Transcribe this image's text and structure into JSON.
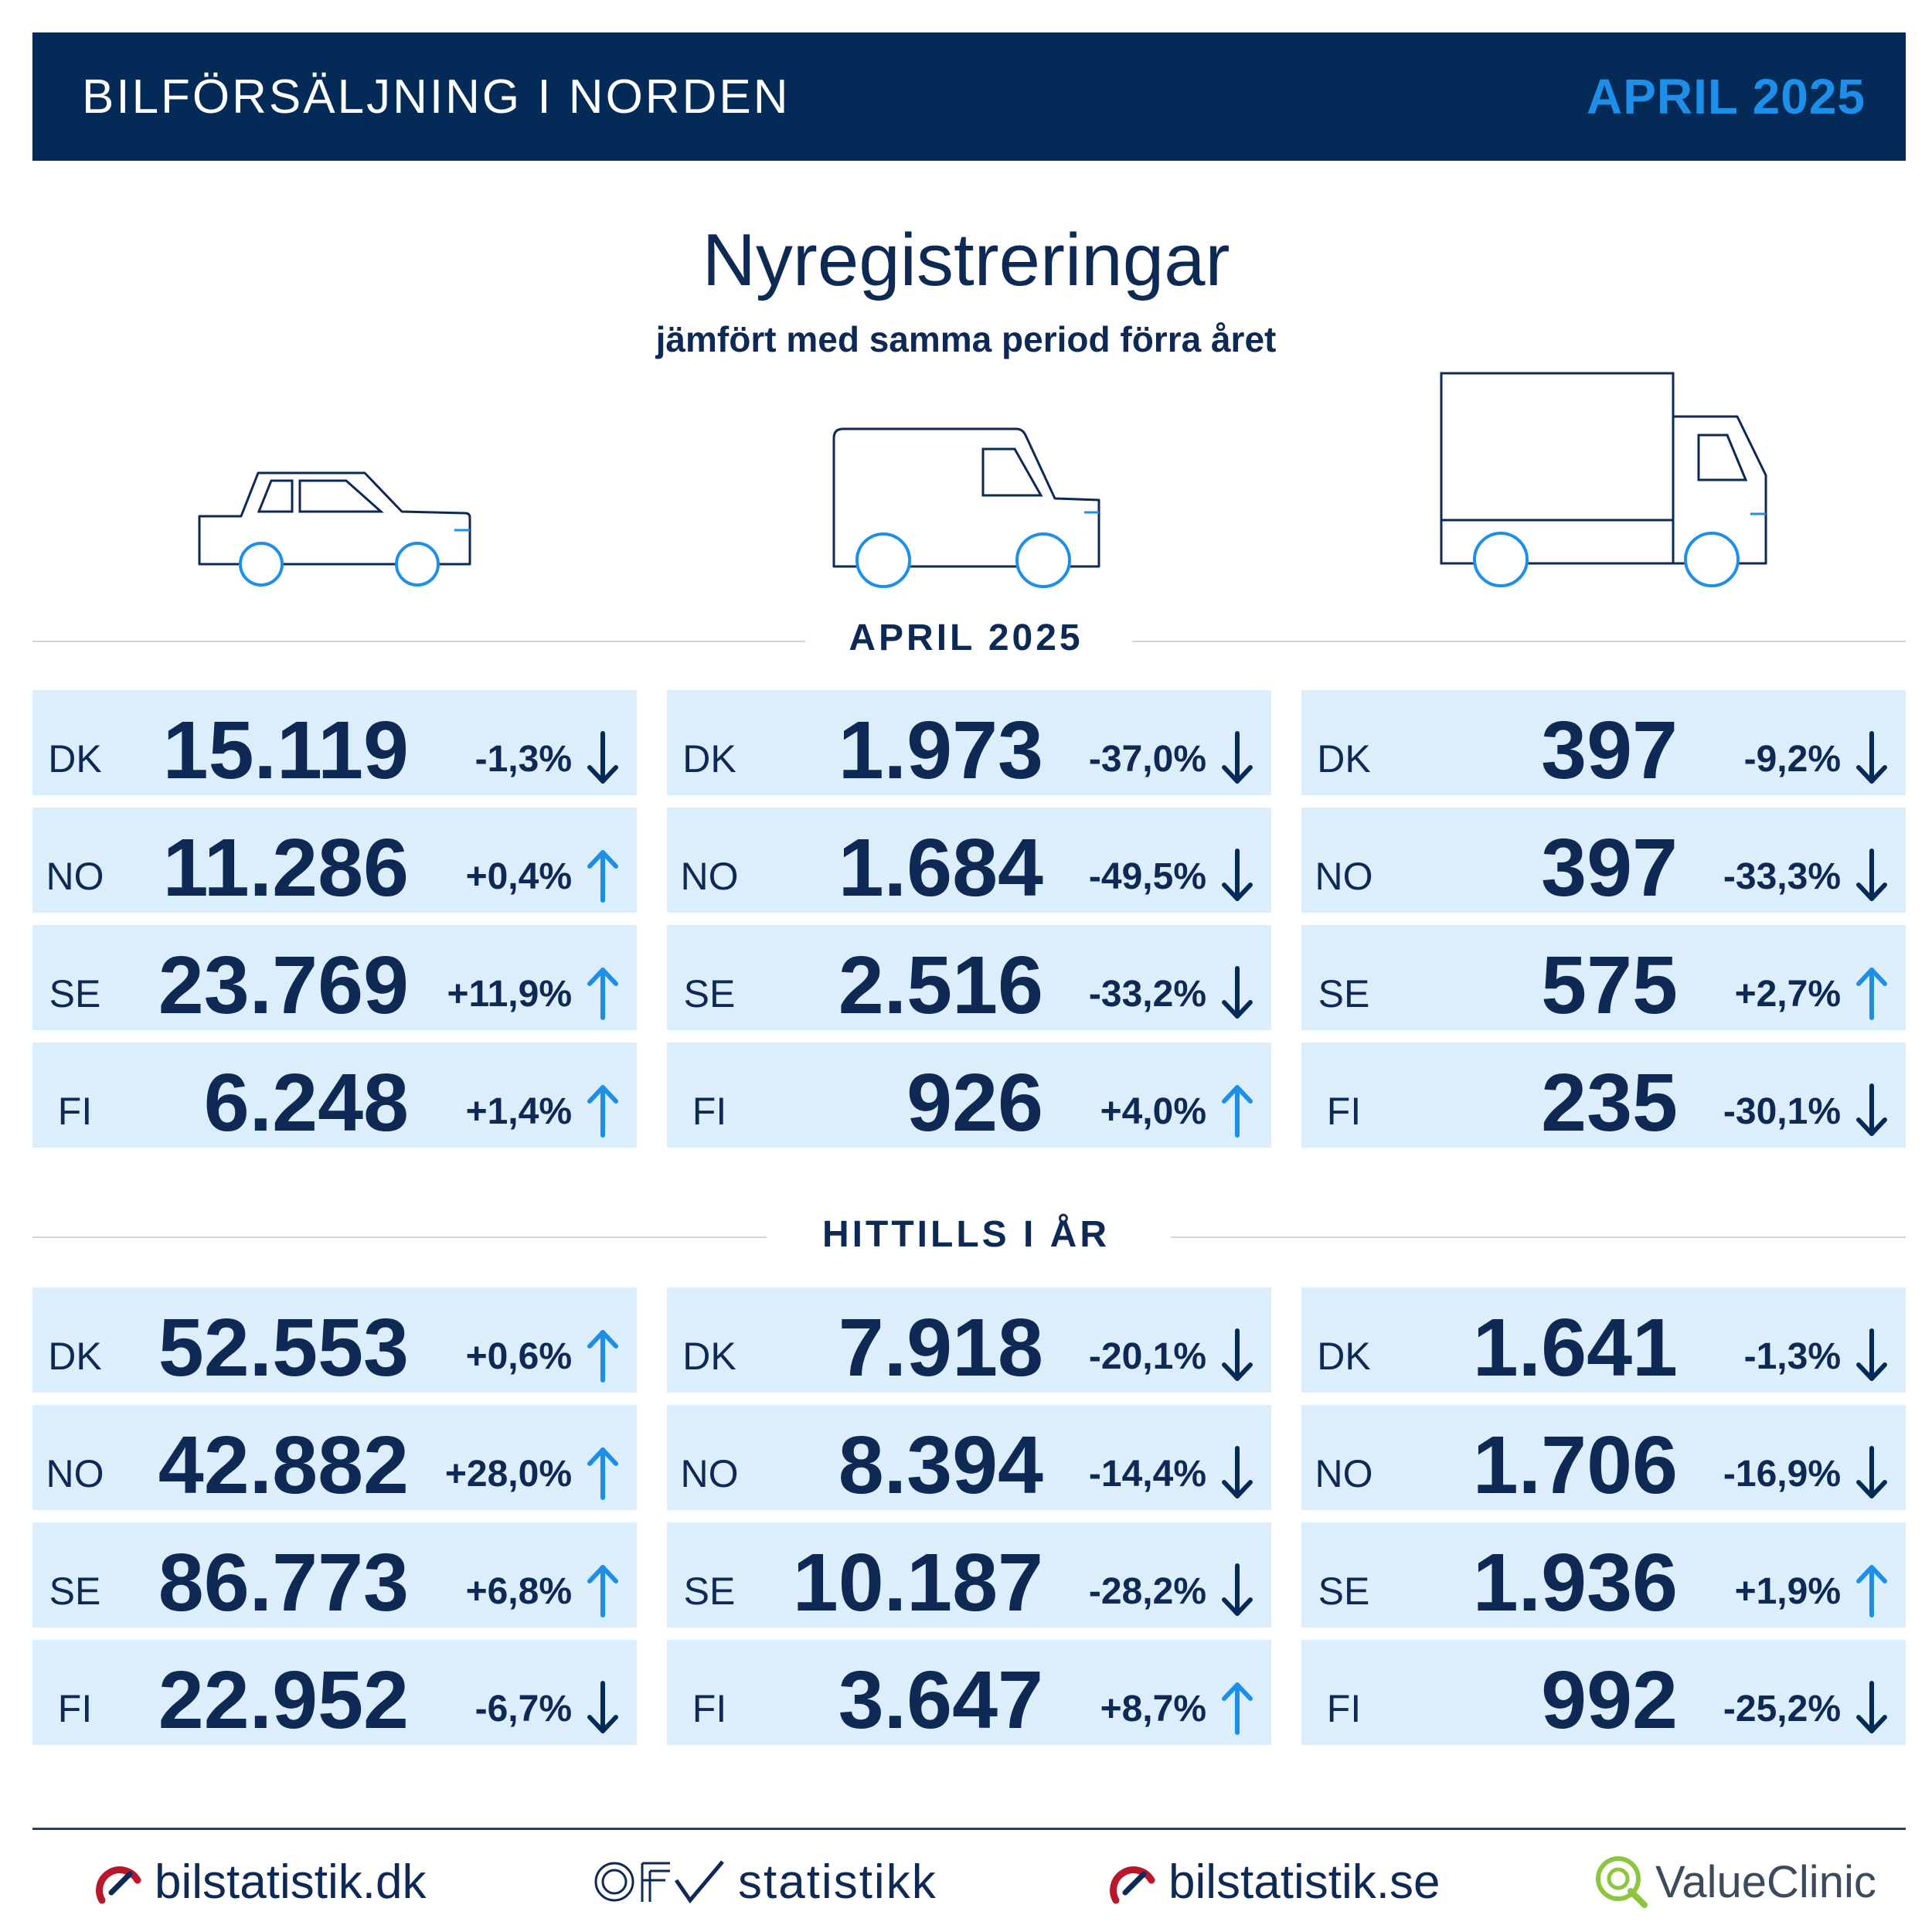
{
  "header": {
    "title": "BILFÖRSÄLJNING I NORDEN",
    "date": "APRIL 2025"
  },
  "title": "Nyregistreringar",
  "subtitle": "jämfört med samma period förra året",
  "colors": {
    "navy": "#042b58",
    "accent": "#1e8fe8",
    "card": "#dcedfb",
    "text": "#0e2a54"
  },
  "vehicles": [
    "car-icon",
    "van-icon",
    "truck-icon"
  ],
  "sections": [
    {
      "label": "APRIL 2025",
      "columns": [
        {
          "rows": [
            {
              "cc": "DK",
              "value": "15.119",
              "change": "-1,3%",
              "trend": "down"
            },
            {
              "cc": "NO",
              "value": "11.286",
              "change": "+0,4%",
              "trend": "up"
            },
            {
              "cc": "SE",
              "value": "23.769",
              "change": "+11,9%",
              "trend": "up"
            },
            {
              "cc": "FI",
              "value": "6.248",
              "change": "+1,4%",
              "trend": "up"
            }
          ]
        },
        {
          "rows": [
            {
              "cc": "DK",
              "value": "1.973",
              "change": "-37,0%",
              "trend": "down"
            },
            {
              "cc": "NO",
              "value": "1.684",
              "change": "-49,5%",
              "trend": "down"
            },
            {
              "cc": "SE",
              "value": "2.516",
              "change": "-33,2%",
              "trend": "down"
            },
            {
              "cc": "FI",
              "value": "926",
              "change": "+4,0%",
              "trend": "up"
            }
          ]
        },
        {
          "rows": [
            {
              "cc": "DK",
              "value": "397",
              "change": "-9,2%",
              "trend": "down"
            },
            {
              "cc": "NO",
              "value": "397",
              "change": "-33,3%",
              "trend": "down"
            },
            {
              "cc": "SE",
              "value": "575",
              "change": "+2,7%",
              "trend": "up"
            },
            {
              "cc": "FI",
              "value": "235",
              "change": "-30,1%",
              "trend": "down"
            }
          ]
        }
      ]
    },
    {
      "label": "HITTILLS I ÅR",
      "columns": [
        {
          "rows": [
            {
              "cc": "DK",
              "value": "52.553",
              "change": "+0,6%",
              "trend": "up"
            },
            {
              "cc": "NO",
              "value": "42.882",
              "change": "+28,0%",
              "trend": "up"
            },
            {
              "cc": "SE",
              "value": "86.773",
              "change": "+6,8%",
              "trend": "up"
            },
            {
              "cc": "FI",
              "value": "22.952",
              "change": "-6,7%",
              "trend": "down"
            }
          ]
        },
        {
          "rows": [
            {
              "cc": "DK",
              "value": "7.918",
              "change": "-20,1%",
              "trend": "down"
            },
            {
              "cc": "NO",
              "value": "8.394",
              "change": "-14,4%",
              "trend": "down"
            },
            {
              "cc": "SE",
              "value": "10.187",
              "change": "-28,2%",
              "trend": "down"
            },
            {
              "cc": "FI",
              "value": "3.647",
              "change": "+8,7%",
              "trend": "up"
            }
          ]
        },
        {
          "rows": [
            {
              "cc": "DK",
              "value": "1.641",
              "change": "-1,3%",
              "trend": "down"
            },
            {
              "cc": "NO",
              "value": "1.706",
              "change": "-16,9%",
              "trend": "down"
            },
            {
              "cc": "SE",
              "value": "1.936",
              "change": "+1,9%",
              "trend": "up"
            },
            {
              "cc": "FI",
              "value": "992",
              "change": "-25,2%",
              "trend": "down"
            }
          ]
        }
      ]
    }
  ],
  "footer": [
    {
      "text": "bilstatistik.dk",
      "icon": "speedometer-icon"
    },
    {
      "text": "statistikk",
      "icon": "ofv-logo-icon"
    },
    {
      "text": "bilstatistik.se",
      "icon": "speedometer-icon"
    },
    {
      "text": "ValueClinic",
      "icon": "valueclinic-q-icon"
    }
  ]
}
